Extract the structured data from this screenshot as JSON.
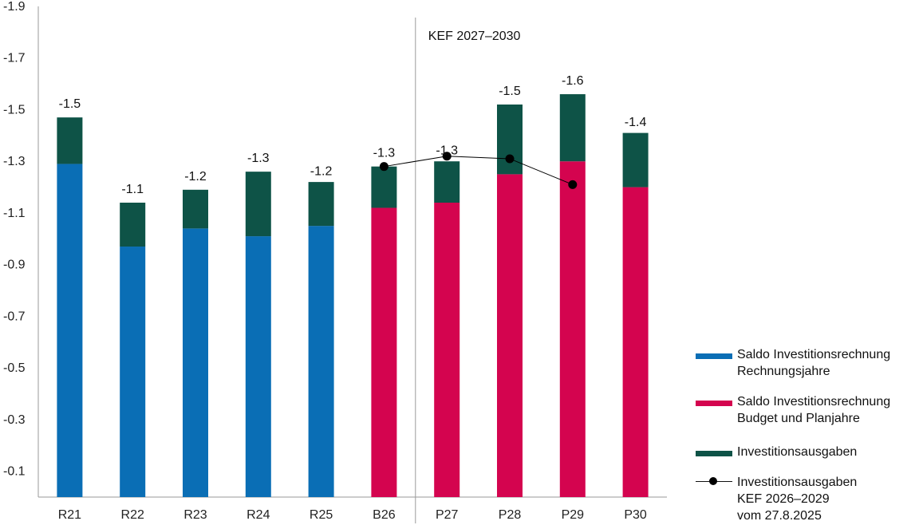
{
  "chart_data": {
    "type": "bar",
    "stacked": true,
    "categories": [
      "R21",
      "R22",
      "R23",
      "R24",
      "R25",
      "B26",
      "P27",
      "P28",
      "P29",
      "P30"
    ],
    "series": [
      {
        "name": "Saldo Investitionsrechnung Rechnungsjahre",
        "color": "#0a6eb5",
        "values": [
          -1.29,
          -0.97,
          -1.04,
          -1.01,
          -1.05,
          null,
          null,
          null,
          null,
          null
        ]
      },
      {
        "name": "Saldo Investitionsrechnung Budget und Planjahre",
        "color": "#d4044f",
        "values": [
          null,
          null,
          null,
          null,
          null,
          -1.12,
          -1.14,
          -1.25,
          -1.3,
          -1.2
        ]
      },
      {
        "name": "Investitionsausgaben",
        "color": "#0e5347",
        "values": [
          -0.18,
          -0.17,
          -0.15,
          -0.25,
          -0.17,
          -0.16,
          -0.16,
          -0.27,
          -0.26,
          -0.21
        ]
      }
    ],
    "totals_labels": [
      "-1.5",
      "-1.1",
      "-1.2",
      "-1.3",
      "-1.2",
      "-1.3",
      "-1.3",
      "-1.5",
      "-1.6",
      "-1.4"
    ],
    "totals": [
      -1.47,
      -1.14,
      -1.19,
      -1.26,
      -1.21,
      -1.28,
      -1.29,
      -1.52,
      -1.56,
      -1.4
    ],
    "line_series": {
      "name": "Investitionsausgaben KEF 2026–2029 vom 27.8.2025",
      "color": "#000000",
      "points": [
        {
          "category": "B26",
          "value": -1.28
        },
        {
          "category": "P27",
          "value": -1.32
        },
        {
          "category": "P28",
          "value": -1.31
        },
        {
          "category": "P29",
          "value": -1.21
        }
      ]
    },
    "y_axis": {
      "ylim": [
        0,
        -1.9
      ],
      "ticks": [
        -0.1,
        -0.3,
        -0.5,
        -0.7,
        -0.9,
        -1.1,
        -1.3,
        -1.5,
        -1.7,
        -1.9
      ],
      "tick_labels": [
        "-0.1",
        "-0.3",
        "-0.5",
        "-0.7",
        "-0.9",
        "-1.1",
        "-1.3",
        "-1.5",
        "-1.7",
        "-1.9"
      ]
    },
    "annotation": "KEF 2027–2030",
    "divider_after_category": "B26",
    "legend_position": "right",
    "grid": false
  },
  "legend": {
    "items": [
      {
        "line1": "Saldo Investitionsrechnung",
        "line2": "Rechnungsjahre",
        "line3": "",
        "color": "#0a6eb5"
      },
      {
        "line1": "Saldo Investitionsrechnung",
        "line2": "Budget und Planjahre",
        "line3": "",
        "color": "#d4044f"
      },
      {
        "line1": "Investitionsausgaben",
        "line2": "",
        "line3": "",
        "color": "#0e5347"
      },
      {
        "line1": "Investitionsausgaben",
        "line2": "KEF 2026–2029",
        "line3": "vom 27.8.2025",
        "color": "#000000"
      }
    ]
  }
}
